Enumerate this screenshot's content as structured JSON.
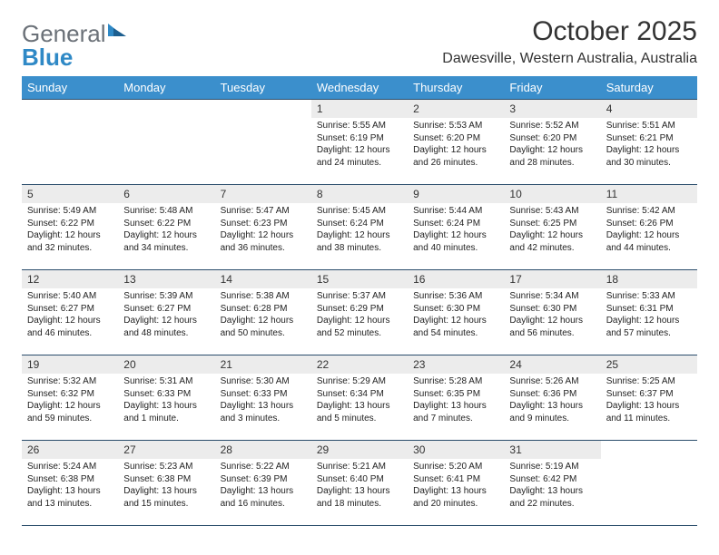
{
  "brand": {
    "part1": "General",
    "part2": "Blue"
  },
  "title": "October 2025",
  "location": "Dawesville, Western Australia, Australia",
  "colors": {
    "header_bg": "#3b8fcc",
    "header_text": "#ffffff",
    "daynum_bg": "#ececec",
    "rule": "#2a4d6b",
    "logo_gray": "#6b7178",
    "logo_blue": "#2f89c6",
    "page_bg": "#ffffff"
  },
  "weekdays": [
    "Sunday",
    "Monday",
    "Tuesday",
    "Wednesday",
    "Thursday",
    "Friday",
    "Saturday"
  ],
  "weeks": [
    [
      {
        "blank": true
      },
      {
        "blank": true
      },
      {
        "blank": true
      },
      {
        "day": "1",
        "sunrise": "Sunrise: 5:55 AM",
        "sunset": "Sunset: 6:19 PM",
        "daylight1": "Daylight: 12 hours",
        "daylight2": "and 24 minutes."
      },
      {
        "day": "2",
        "sunrise": "Sunrise: 5:53 AM",
        "sunset": "Sunset: 6:20 PM",
        "daylight1": "Daylight: 12 hours",
        "daylight2": "and 26 minutes."
      },
      {
        "day": "3",
        "sunrise": "Sunrise: 5:52 AM",
        "sunset": "Sunset: 6:20 PM",
        "daylight1": "Daylight: 12 hours",
        "daylight2": "and 28 minutes."
      },
      {
        "day": "4",
        "sunrise": "Sunrise: 5:51 AM",
        "sunset": "Sunset: 6:21 PM",
        "daylight1": "Daylight: 12 hours",
        "daylight2": "and 30 minutes."
      }
    ],
    [
      {
        "day": "5",
        "sunrise": "Sunrise: 5:49 AM",
        "sunset": "Sunset: 6:22 PM",
        "daylight1": "Daylight: 12 hours",
        "daylight2": "and 32 minutes."
      },
      {
        "day": "6",
        "sunrise": "Sunrise: 5:48 AM",
        "sunset": "Sunset: 6:22 PM",
        "daylight1": "Daylight: 12 hours",
        "daylight2": "and 34 minutes."
      },
      {
        "day": "7",
        "sunrise": "Sunrise: 5:47 AM",
        "sunset": "Sunset: 6:23 PM",
        "daylight1": "Daylight: 12 hours",
        "daylight2": "and 36 minutes."
      },
      {
        "day": "8",
        "sunrise": "Sunrise: 5:45 AM",
        "sunset": "Sunset: 6:24 PM",
        "daylight1": "Daylight: 12 hours",
        "daylight2": "and 38 minutes."
      },
      {
        "day": "9",
        "sunrise": "Sunrise: 5:44 AM",
        "sunset": "Sunset: 6:24 PM",
        "daylight1": "Daylight: 12 hours",
        "daylight2": "and 40 minutes."
      },
      {
        "day": "10",
        "sunrise": "Sunrise: 5:43 AM",
        "sunset": "Sunset: 6:25 PM",
        "daylight1": "Daylight: 12 hours",
        "daylight2": "and 42 minutes."
      },
      {
        "day": "11",
        "sunrise": "Sunrise: 5:42 AM",
        "sunset": "Sunset: 6:26 PM",
        "daylight1": "Daylight: 12 hours",
        "daylight2": "and 44 minutes."
      }
    ],
    [
      {
        "day": "12",
        "sunrise": "Sunrise: 5:40 AM",
        "sunset": "Sunset: 6:27 PM",
        "daylight1": "Daylight: 12 hours",
        "daylight2": "and 46 minutes."
      },
      {
        "day": "13",
        "sunrise": "Sunrise: 5:39 AM",
        "sunset": "Sunset: 6:27 PM",
        "daylight1": "Daylight: 12 hours",
        "daylight2": "and 48 minutes."
      },
      {
        "day": "14",
        "sunrise": "Sunrise: 5:38 AM",
        "sunset": "Sunset: 6:28 PM",
        "daylight1": "Daylight: 12 hours",
        "daylight2": "and 50 minutes."
      },
      {
        "day": "15",
        "sunrise": "Sunrise: 5:37 AM",
        "sunset": "Sunset: 6:29 PM",
        "daylight1": "Daylight: 12 hours",
        "daylight2": "and 52 minutes."
      },
      {
        "day": "16",
        "sunrise": "Sunrise: 5:36 AM",
        "sunset": "Sunset: 6:30 PM",
        "daylight1": "Daylight: 12 hours",
        "daylight2": "and 54 minutes."
      },
      {
        "day": "17",
        "sunrise": "Sunrise: 5:34 AM",
        "sunset": "Sunset: 6:30 PM",
        "daylight1": "Daylight: 12 hours",
        "daylight2": "and 56 minutes."
      },
      {
        "day": "18",
        "sunrise": "Sunrise: 5:33 AM",
        "sunset": "Sunset: 6:31 PM",
        "daylight1": "Daylight: 12 hours",
        "daylight2": "and 57 minutes."
      }
    ],
    [
      {
        "day": "19",
        "sunrise": "Sunrise: 5:32 AM",
        "sunset": "Sunset: 6:32 PM",
        "daylight1": "Daylight: 12 hours",
        "daylight2": "and 59 minutes."
      },
      {
        "day": "20",
        "sunrise": "Sunrise: 5:31 AM",
        "sunset": "Sunset: 6:33 PM",
        "daylight1": "Daylight: 13 hours",
        "daylight2": "and 1 minute."
      },
      {
        "day": "21",
        "sunrise": "Sunrise: 5:30 AM",
        "sunset": "Sunset: 6:33 PM",
        "daylight1": "Daylight: 13 hours",
        "daylight2": "and 3 minutes."
      },
      {
        "day": "22",
        "sunrise": "Sunrise: 5:29 AM",
        "sunset": "Sunset: 6:34 PM",
        "daylight1": "Daylight: 13 hours",
        "daylight2": "and 5 minutes."
      },
      {
        "day": "23",
        "sunrise": "Sunrise: 5:28 AM",
        "sunset": "Sunset: 6:35 PM",
        "daylight1": "Daylight: 13 hours",
        "daylight2": "and 7 minutes."
      },
      {
        "day": "24",
        "sunrise": "Sunrise: 5:26 AM",
        "sunset": "Sunset: 6:36 PM",
        "daylight1": "Daylight: 13 hours",
        "daylight2": "and 9 minutes."
      },
      {
        "day": "25",
        "sunrise": "Sunrise: 5:25 AM",
        "sunset": "Sunset: 6:37 PM",
        "daylight1": "Daylight: 13 hours",
        "daylight2": "and 11 minutes."
      }
    ],
    [
      {
        "day": "26",
        "sunrise": "Sunrise: 5:24 AM",
        "sunset": "Sunset: 6:38 PM",
        "daylight1": "Daylight: 13 hours",
        "daylight2": "and 13 minutes."
      },
      {
        "day": "27",
        "sunrise": "Sunrise: 5:23 AM",
        "sunset": "Sunset: 6:38 PM",
        "daylight1": "Daylight: 13 hours",
        "daylight2": "and 15 minutes."
      },
      {
        "day": "28",
        "sunrise": "Sunrise: 5:22 AM",
        "sunset": "Sunset: 6:39 PM",
        "daylight1": "Daylight: 13 hours",
        "daylight2": "and 16 minutes."
      },
      {
        "day": "29",
        "sunrise": "Sunrise: 5:21 AM",
        "sunset": "Sunset: 6:40 PM",
        "daylight1": "Daylight: 13 hours",
        "daylight2": "and 18 minutes."
      },
      {
        "day": "30",
        "sunrise": "Sunrise: 5:20 AM",
        "sunset": "Sunset: 6:41 PM",
        "daylight1": "Daylight: 13 hours",
        "daylight2": "and 20 minutes."
      },
      {
        "day": "31",
        "sunrise": "Sunrise: 5:19 AM",
        "sunset": "Sunset: 6:42 PM",
        "daylight1": "Daylight: 13 hours",
        "daylight2": "and 22 minutes."
      },
      {
        "blank": true
      }
    ]
  ]
}
